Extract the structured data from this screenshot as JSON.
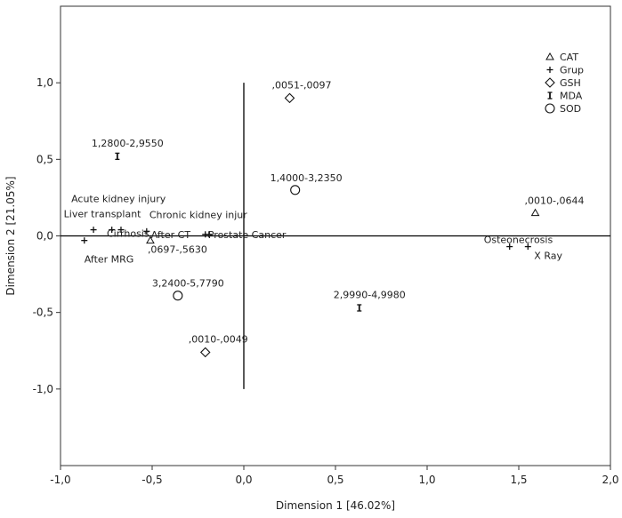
{
  "chart_data": {
    "type": "scatter",
    "title": "",
    "xlabel": "Dimension 1 [46.02%]",
    "ylabel": "Dimension 2 [21.05%]",
    "xlim": [
      -1.0,
      2.0
    ],
    "ylim": [
      -1.5,
      1.5
    ],
    "x_ticks": [
      -1.0,
      -0.5,
      0.0,
      0.5,
      1.0,
      1.5,
      2.0
    ],
    "x_tick_labels": [
      "-1,0",
      "-0,5",
      "0,0",
      "0,5",
      "1,0",
      "1,5",
      "2,0"
    ],
    "y_ticks": [
      -1.0,
      -0.5,
      0.0,
      0.5,
      1.0
    ],
    "y_tick_labels": [
      "-1,0",
      "-0,5",
      "0,0",
      "0,5",
      "1,0"
    ],
    "grid": false,
    "reference_lines": {
      "horizontal_y": 0,
      "vertical_x": 0,
      "vertical_y_range": [
        -1.0,
        1.0
      ]
    },
    "legend": {
      "placement": "top-right"
    },
    "series": [
      {
        "name": "CAT",
        "marker": "triangle",
        "points": [
          {
            "x": 1.59,
            "y": 0.15,
            "label": ",0010-,0644"
          },
          {
            "x": -0.51,
            "y": -0.03,
            "label": ",0697-,5630"
          }
        ]
      },
      {
        "name": "Grup",
        "marker": "plus",
        "points": [
          {
            "x": -0.82,
            "y": 0.04,
            "label": "Acute kidney injury"
          },
          {
            "x": -0.72,
            "y": 0.04,
            "label": "Liver transplant"
          },
          {
            "x": -0.67,
            "y": 0.04,
            "label": "Cirrhosis"
          },
          {
            "x": -0.53,
            "y": 0.03,
            "label": "Chronic kidney injur"
          },
          {
            "x": -0.87,
            "y": -0.03,
            "label": "After MRG"
          },
          {
            "x": -0.21,
            "y": 0.01,
            "label": "After CT"
          },
          {
            "x": -0.19,
            "y": 0.01,
            "label": "Prostate Cancer"
          },
          {
            "x": 1.45,
            "y": -0.07,
            "label": "Osteonecrosis"
          },
          {
            "x": 1.55,
            "y": -0.07,
            "label": "X Ray"
          }
        ]
      },
      {
        "name": "GSH",
        "marker": "diamond",
        "points": [
          {
            "x": 0.25,
            "y": 0.9,
            "label": ",0051-,0097"
          },
          {
            "x": -0.21,
            "y": -0.76,
            "label": ",0010-,0049"
          }
        ]
      },
      {
        "name": "MDA",
        "marker": "hourglass",
        "points": [
          {
            "x": -0.69,
            "y": 0.52,
            "label": "1,2800-2,9550"
          },
          {
            "x": 0.63,
            "y": -0.47,
            "label": "2,9990-4,9980"
          }
        ]
      },
      {
        "name": "SOD",
        "marker": "circle",
        "points": [
          {
            "x": 0.28,
            "y": 0.3,
            "label": "1,4000-3,2350"
          },
          {
            "x": -0.36,
            "y": -0.39,
            "label": "3,2400-5,7790"
          }
        ]
      }
    ]
  }
}
